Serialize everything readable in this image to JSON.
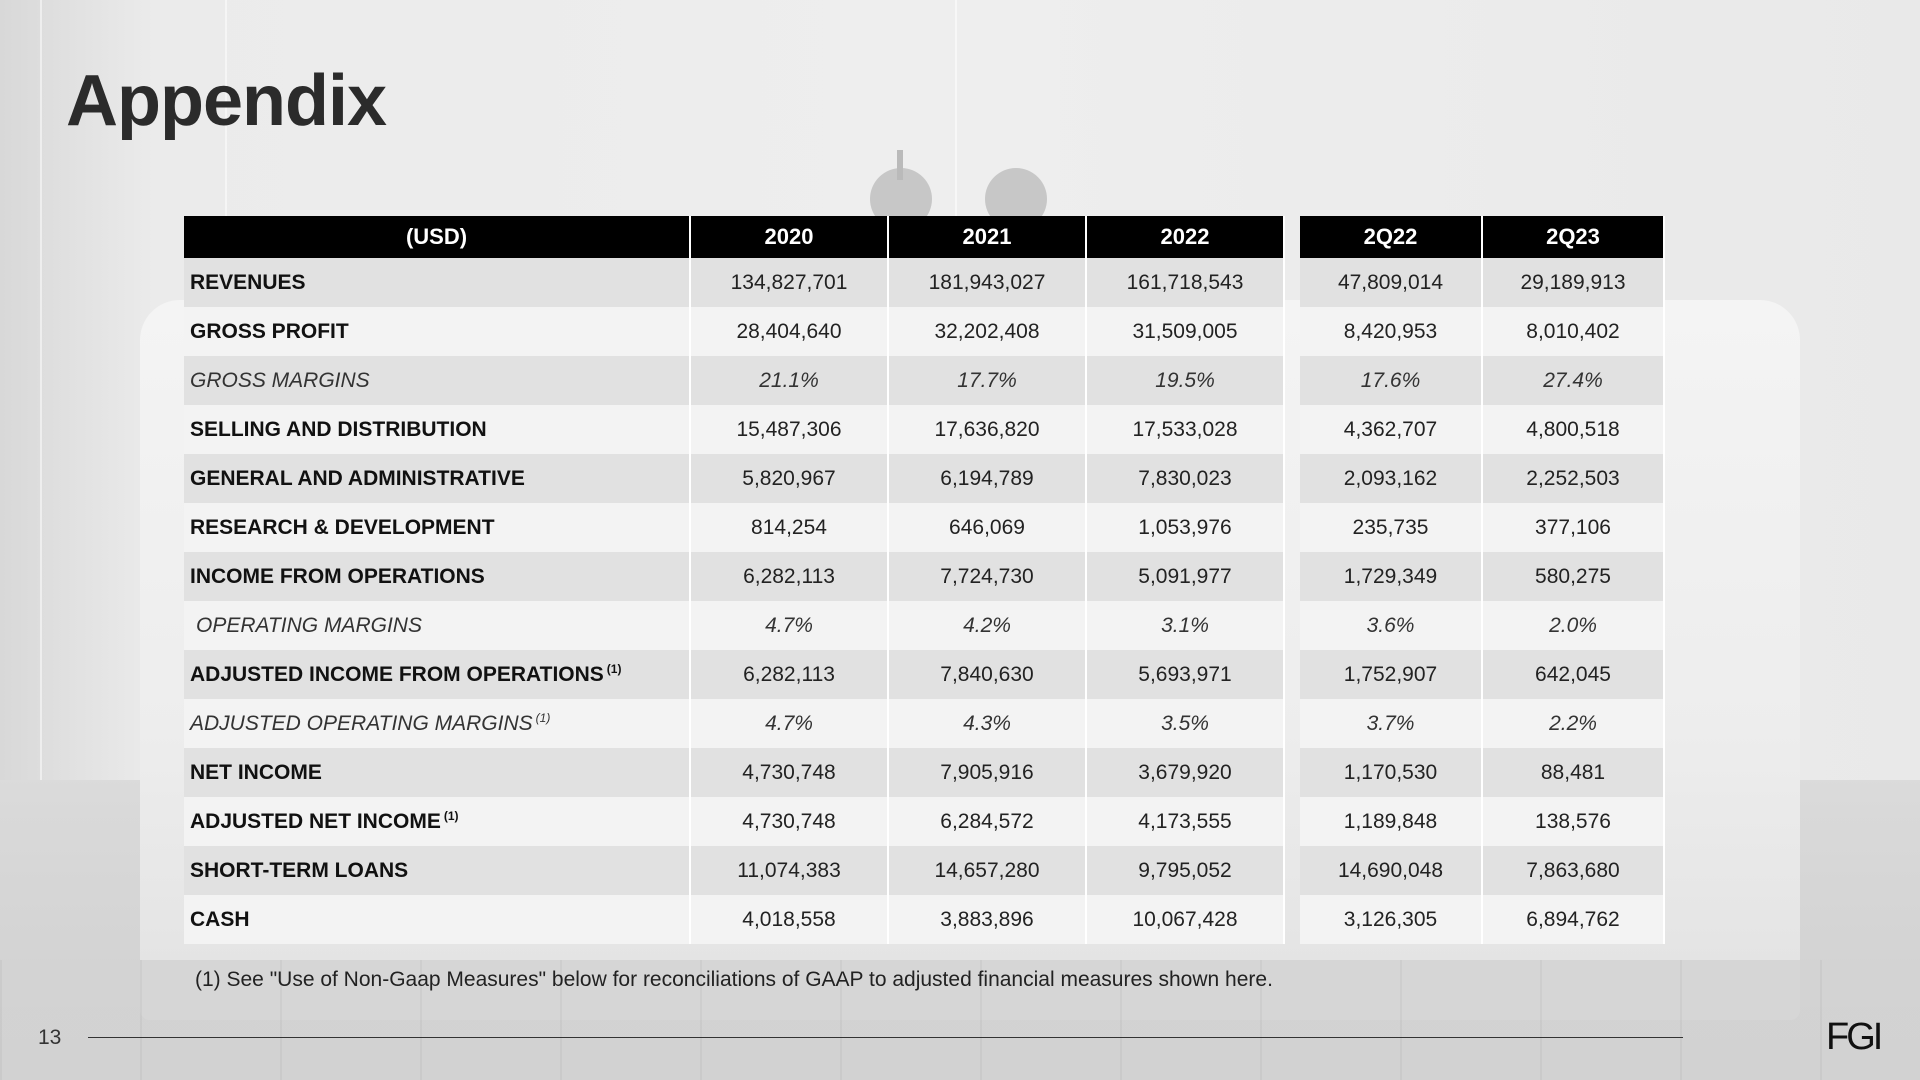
{
  "slide": {
    "title": "Appendix",
    "page_number": "13",
    "logo_text": "FGI",
    "footnote": "(1) See \"Use of Non-Gaap Measures\" below for reconciliations of GAAP to adjusted financial measures shown here."
  },
  "table": {
    "headers": [
      "(USD)",
      "2020",
      "2021",
      "2022",
      "2Q22",
      "2Q23"
    ],
    "footnote_marker": "(1)",
    "rows": [
      {
        "label": "REVENUES",
        "values": [
          "134,827,701",
          "181,943,027",
          "161,718,543",
          "47,809,014",
          "29,189,913"
        ]
      },
      {
        "label": "GROSS PROFIT",
        "values": [
          "28,404,640",
          "32,202,408",
          "31,509,005",
          "8,420,953",
          "8,010,402"
        ]
      },
      {
        "label": "GROSS MARGINS",
        "values": [
          "21.1%",
          "17.7%",
          "19.5%",
          "17.6%",
          "27.4%"
        ]
      },
      {
        "label": "SELLING AND DISTRIBUTION",
        "values": [
          "15,487,306",
          "17,636,820",
          "17,533,028",
          "4,362,707",
          "4,800,518"
        ]
      },
      {
        "label": "GENERAL AND ADMINISTRATIVE",
        "values": [
          "5,820,967",
          "6,194,789",
          "7,830,023",
          "2,093,162",
          "2,252,503"
        ]
      },
      {
        "label": "RESEARCH & DEVELOPMENT",
        "values": [
          "814,254",
          "646,069",
          "1,053,976",
          "235,735",
          "377,106"
        ]
      },
      {
        "label": "INCOME FROM OPERATIONS",
        "values": [
          "6,282,113",
          "7,724,730",
          "5,091,977",
          "1,729,349",
          "580,275"
        ]
      },
      {
        "label": "OPERATING MARGINS",
        "values": [
          "4.7%",
          "4.2%",
          "3.1%",
          "3.6%",
          "2.0%"
        ]
      },
      {
        "label": "ADJUSTED INCOME FROM OPERATIONS",
        "values": [
          "6,282,113",
          "7,840,630",
          "5,693,971",
          "1,752,907",
          "642,045"
        ]
      },
      {
        "label": "ADJUSTED OPERATING MARGINS",
        "values": [
          "4.7%",
          "4.3%",
          "3.5%",
          "3.7%",
          "2.2%"
        ]
      },
      {
        "label": "NET INCOME",
        "values": [
          "4,730,748",
          "7,905,916",
          "3,679,920",
          "1,170,530",
          "88,481"
        ]
      },
      {
        "label": "ADJUSTED NET INCOME",
        "values": [
          "4,730,748",
          "6,284,572",
          "4,173,555",
          "1,189,848",
          "138,576"
        ]
      },
      {
        "label": "SHORT-TERM LOANS",
        "values": [
          "11,074,383",
          "14,657,280",
          "9,795,052",
          "14,690,048",
          "7,863,680"
        ]
      },
      {
        "label": "CASH",
        "values": [
          "4,018,558",
          "3,883,896",
          "10,067,428",
          "3,126,305",
          "6,894,762"
        ]
      }
    ]
  }
}
